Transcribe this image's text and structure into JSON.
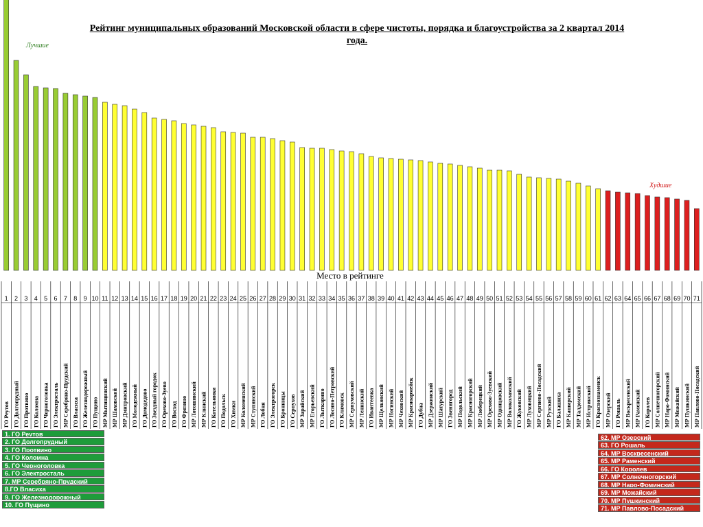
{
  "header": {
    "title": "Рейтинг муниципальных образований Московской области в сфере чистоты, порядка и благоустройства за 2 квартал 2014 года.",
    "best_label": "Лучшие",
    "worst_label": "Худшие"
  },
  "chart_data": {
    "type": "bar",
    "xlabel": "Место в рейтинге",
    "ylabel": "",
    "categories": [
      "ГО Реутов",
      "ГО Долгопрудный",
      "ГО Протвино",
      "ГО Коломна",
      "ГО Черноголовка",
      "ГО Электросталь",
      "МР Серебряно-Прудский",
      "ГО Власиха",
      "ГО Железнодорожный",
      "ГО Пущино",
      "МР Мытищинский",
      "МР Шаховской",
      "МР Дмитровский",
      "ГО Молодежный",
      "ГО Домодедово",
      "ГО Звездный городок",
      "ГО Орехово-Зуево",
      "ГО Восход",
      "ГО Фрязино",
      "МР Лотошинский",
      "МР Клинский",
      "ГО Котельники",
      "ГО Подольск",
      "ГО Химки",
      "МР Коломенский",
      "МР Ступинский",
      "ГО Лобня",
      "ГО Электрогорск",
      "ГО Бронницы",
      "ГО Серпухов",
      "МР Зарайский",
      "МР Егорьевский",
      "ГО Лыткарино",
      "ГО Лосино-Петровский",
      "ГО Климовск",
      "МР Серпуховский",
      "МР Ленинский",
      "ГО Ивантеевка",
      "МР Щелковский",
      "МР Ногинский",
      "МР Чеховский",
      "МР Красноармейск",
      "ГО Дубна",
      "МР Дзержинский",
      "МР Шатурский",
      "ГО Звенигород",
      "МР Подольский",
      "МР Красногорский",
      "МР Люберецкий",
      "МР Орехово-Зуевский",
      "МР Одинцовский",
      "МР Волоколамский",
      "ГО Жуковский",
      "МР Луховицкий",
      "МР Сергиево-Посадский",
      "МР Рузский",
      "ГО Балашиха",
      "МР Каширский",
      "МР Талдомский",
      "МР Истринский",
      "ГО Краснознаменск",
      "МР Озерский",
      "ГО Рошаль",
      "МР Воскресенский",
      "МР Раменский",
      "ГО Королев",
      "МР Солнечногорский",
      "МР Наро-Фоминский",
      "МР Можайский",
      "МР Пушкинский",
      "МР Павлово-Посадский"
    ],
    "places": [
      "1",
      "2",
      "3",
      "4",
      "5",
      "6",
      "7",
      "8",
      "9",
      "10",
      "11",
      "12",
      "13",
      "14",
      "15",
      "16",
      "17",
      "18",
      "19",
      "20",
      "21",
      "22",
      "23",
      "24",
      "25",
      "26",
      "27",
      "28",
      "29",
      "30",
      "31",
      "32",
      "33",
      "34",
      "35",
      "36",
      "37",
      "38",
      "39",
      "40",
      "41",
      "42",
      "43",
      "44",
      "45",
      "46",
      "47",
      "48",
      "49",
      "50",
      "51",
      "52",
      "53",
      "54",
      "55",
      "56",
      "57",
      "58",
      "59",
      "60",
      "61",
      "62",
      "63",
      "64",
      "65",
      "66",
      "67",
      "68",
      "69",
      "70",
      "71"
    ],
    "values": [
      396,
      306,
      285,
      268,
      266,
      265,
      258,
      256,
      254,
      252,
      245,
      242,
      240,
      235,
      230,
      222,
      220,
      218,
      214,
      212,
      210,
      208,
      202,
      201,
      200,
      194,
      194,
      192,
      189,
      187,
      179,
      178,
      178,
      176,
      174,
      173,
      170,
      166,
      164,
      163,
      162,
      161,
      160,
      158,
      156,
      155,
      153,
      151,
      149,
      146,
      146,
      145,
      140,
      136,
      135,
      134,
      133,
      130,
      127,
      123,
      119,
      116,
      114,
      113,
      112,
      109,
      107,
      106,
      104,
      102,
      90
    ],
    "groups": {
      "best_count": 10,
      "worst_from": 62
    },
    "colors": {
      "best": "#99cc33",
      "middle": "#ffff33",
      "worst": "#dd1f1f",
      "outline": "#333333"
    }
  },
  "legend_best": [
    "1. ГО Реутов",
    "2. ГО Долгопрудный",
    "3. ГО Протвино",
    "4. ГО Коломна",
    "5. ГО Черноголовка",
    "6. ГО Электросталь",
    "7. МР Серебряно-Прудский",
    "8.ГО Власиха",
    "9. ГО Железнодорожный",
    "10. ГО Пущино"
  ],
  "legend_worst": [
    "62. МР Озерский",
    "63. ГО Рошаль",
    "64. МР Воскресенский",
    "65. МР Раменский",
    "66. ГО Королев",
    "67. МР Солнечногорский",
    "68. МР Наро-Фоминский",
    "69. МР Можайский",
    "70. МР Пушкинский",
    "71. МР Павлово-Посадский"
  ]
}
